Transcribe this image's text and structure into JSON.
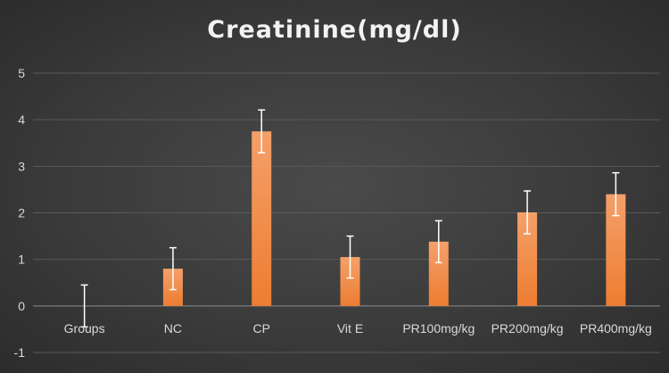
{
  "chart_data": {
    "type": "bar",
    "title": "Creatinine(mg/dl)",
    "categories": [
      "Groups",
      "NC",
      "CP",
      "Vit E",
      "PR100mg/kg",
      "PR200mg/kg",
      "PR400mg/kg"
    ],
    "values": [
      0,
      0.8,
      3.75,
      1.05,
      1.38,
      2.01,
      2.4
    ],
    "error": [
      0.45,
      0.45,
      0.46,
      0.45,
      0.45,
      0.46,
      0.46
    ],
    "ylim": [
      -1,
      5
    ],
    "yticks": [
      -1,
      0,
      1,
      2,
      3,
      4,
      5
    ],
    "grid": true,
    "xlabel": "",
    "ylabel": "",
    "colors": {
      "bar": "#ed7d31",
      "bar_light": "#f4a06a",
      "grid": "#595959",
      "errorbar": "#ffffff",
      "text": "#d9d9d9"
    }
  }
}
